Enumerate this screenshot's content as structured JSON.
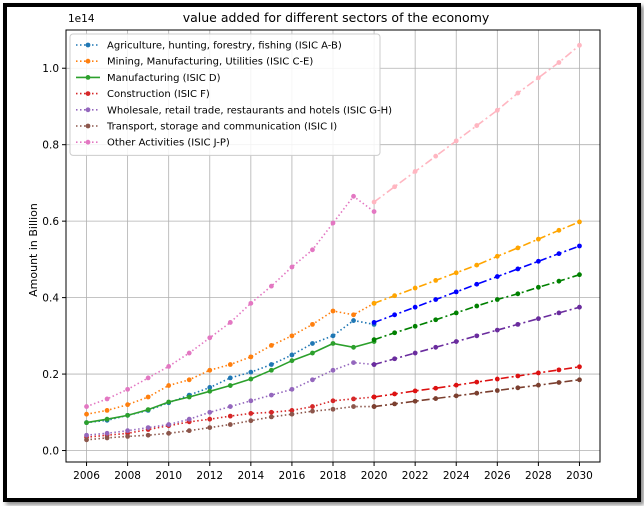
{
  "chart_data": {
    "type": "line",
    "title": "value added for different sectors of the economy",
    "xlabel": "",
    "ylabel": "Amount in Billion",
    "y_offset_label": "1e14",
    "xlim": [
      2005,
      2031
    ],
    "ylim": [
      -0.03,
      1.1
    ],
    "xticks": [
      "2006",
      "2008",
      "2010",
      "2012",
      "2014",
      "2016",
      "2018",
      "2020",
      "2022",
      "2024",
      "2026",
      "2028",
      "2030"
    ],
    "yticks": [
      "0.0",
      "0.2",
      "0.4",
      "0.6",
      "0.8",
      "1.0"
    ],
    "grid": true,
    "legend_position": "top-left",
    "historical_x": [
      2006,
      2007,
      2008,
      2009,
      2010,
      2011,
      2012,
      2013,
      2014,
      2015,
      2016,
      2017,
      2018,
      2019,
      2020
    ],
    "forecast_x": [
      2020,
      2021,
      2022,
      2023,
      2024,
      2025,
      2026,
      2027,
      2028,
      2029,
      2030
    ],
    "series": [
      {
        "name": "Agriculture, hunting, forestry, fishing (ISIC A-B)",
        "color": "#1f77b4",
        "hist_style": "dotted",
        "forecast_color": "#0000ff",
        "forecast_style": "dashdot",
        "historical": [
          0.073,
          0.079,
          0.092,
          0.105,
          0.125,
          0.145,
          0.165,
          0.19,
          0.205,
          0.225,
          0.25,
          0.28,
          0.3,
          0.34,
          0.33
        ],
        "forecast": [
          0.335,
          0.355,
          0.375,
          0.395,
          0.415,
          0.435,
          0.455,
          0.475,
          0.495,
          0.515,
          0.535
        ]
      },
      {
        "name": "Mining, Manufacturing, Utilities (ISIC C-E)",
        "color": "#ff7f0e",
        "hist_style": "dotted",
        "forecast_color": "#ffa500",
        "forecast_style": "dashdot",
        "historical": [
          0.095,
          0.105,
          0.12,
          0.14,
          0.17,
          0.185,
          0.21,
          0.225,
          0.245,
          0.275,
          0.3,
          0.33,
          0.365,
          0.355,
          0.385
        ],
        "forecast": [
          0.385,
          0.405,
          0.425,
          0.445,
          0.465,
          0.485,
          0.508,
          0.53,
          0.553,
          0.576,
          0.598
        ]
      },
      {
        "name": "Manufacturing (ISIC D)",
        "color": "#2ca02c",
        "hist_style": "solid",
        "forecast_color": "#008000",
        "forecast_style": "dashdot",
        "historical": [
          0.073,
          0.082,
          0.092,
          0.107,
          0.127,
          0.14,
          0.155,
          0.17,
          0.187,
          0.21,
          0.235,
          0.255,
          0.28,
          0.27,
          0.285
        ],
        "forecast": [
          0.29,
          0.308,
          0.325,
          0.342,
          0.36,
          0.378,
          0.395,
          0.41,
          0.427,
          0.443,
          0.46
        ]
      },
      {
        "name": "Construction (ISIC F)",
        "color": "#d62728",
        "hist_style": "dotted",
        "forecast_color": "#dd1111",
        "forecast_style": "dashdot",
        "historical": [
          0.035,
          0.04,
          0.045,
          0.055,
          0.065,
          0.075,
          0.082,
          0.09,
          0.097,
          0.1,
          0.105,
          0.115,
          0.13,
          0.135,
          0.14
        ],
        "forecast": [
          0.14,
          0.148,
          0.156,
          0.163,
          0.171,
          0.179,
          0.187,
          0.195,
          0.203,
          0.211,
          0.219
        ]
      },
      {
        "name": "Wholesale, retail trade, restaurants and hotels (ISIC G-H)",
        "color": "#9467bd",
        "hist_style": "dotted",
        "forecast_color": "#6a2c9e",
        "forecast_style": "dashdot",
        "historical": [
          0.04,
          0.045,
          0.052,
          0.06,
          0.068,
          0.082,
          0.1,
          0.115,
          0.13,
          0.145,
          0.16,
          0.185,
          0.21,
          0.23,
          0.225
        ],
        "forecast": [
          0.225,
          0.24,
          0.255,
          0.27,
          0.285,
          0.3,
          0.315,
          0.33,
          0.345,
          0.36,
          0.375
        ]
      },
      {
        "name": "Transport, storage and communication (ISIC I)",
        "color": "#8c564b",
        "hist_style": "dotted",
        "forecast_color": "#7b3f2f",
        "forecast_style": "dashdot",
        "historical": [
          0.028,
          0.033,
          0.037,
          0.04,
          0.045,
          0.052,
          0.06,
          0.068,
          0.078,
          0.088,
          0.095,
          0.103,
          0.108,
          0.115,
          0.115
        ],
        "forecast": [
          0.115,
          0.122,
          0.129,
          0.136,
          0.143,
          0.15,
          0.157,
          0.164,
          0.171,
          0.178,
          0.185
        ]
      },
      {
        "name": "Other Activities (ISIC J-P)",
        "color": "#e377c2",
        "hist_style": "dotted",
        "forecast_color": "#ffb6c1",
        "forecast_style": "dashdot",
        "historical": [
          0.115,
          0.135,
          0.16,
          0.19,
          0.22,
          0.255,
          0.295,
          0.335,
          0.385,
          0.43,
          0.48,
          0.525,
          0.595,
          0.665,
          0.625
        ],
        "forecast": [
          0.65,
          0.69,
          0.73,
          0.77,
          0.81,
          0.85,
          0.89,
          0.935,
          0.975,
          1.015,
          1.06
        ]
      }
    ]
  }
}
